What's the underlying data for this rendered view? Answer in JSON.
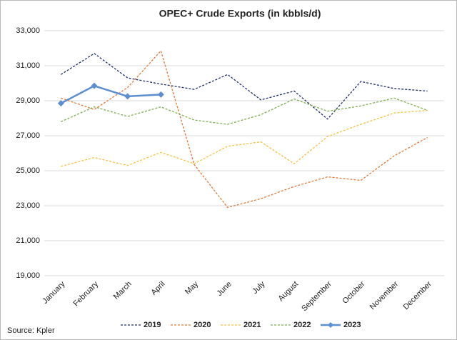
{
  "chart_data": {
    "type": "line",
    "title": "OPEC+ Crude Exports (in kbbls/d)",
    "source": "Source: Kpler",
    "categories": [
      "January",
      "February",
      "March",
      "April",
      "May",
      "June",
      "July",
      "August",
      "September",
      "October",
      "November",
      "December"
    ],
    "series": [
      {
        "name": "2019",
        "color": "#1f2f6e",
        "dashed": true,
        "values": [
          30500,
          31700,
          30300,
          29950,
          29650,
          30500,
          29050,
          29550,
          27950,
          30100,
          29700,
          29550
        ]
      },
      {
        "name": "2020",
        "color": "#e07b39",
        "dashed": true,
        "values": [
          29150,
          28500,
          29750,
          31850,
          25350,
          22900,
          23400,
          24100,
          24650,
          24450,
          25850,
          26900
        ]
      },
      {
        "name": "2021",
        "color": "#f5c242",
        "dashed": true,
        "values": [
          25250,
          25750,
          25300,
          26050,
          25400,
          26400,
          26650,
          25400,
          26950,
          27650,
          28300,
          28450
        ]
      },
      {
        "name": "2022",
        "color": "#7fad4f",
        "dashed": true,
        "values": [
          27800,
          28650,
          28100,
          28650,
          27900,
          27650,
          28200,
          29100,
          28400,
          28700,
          29150,
          28450
        ]
      },
      {
        "name": "2023",
        "color": "#5b8fd1",
        "dashed": false,
        "marker": "diamond",
        "values": [
          28850,
          29850,
          29250,
          29350,
          null,
          null,
          null,
          null,
          null,
          null,
          null,
          null
        ]
      }
    ],
    "ylim": [
      19000,
      33000
    ],
    "yticks": [
      {
        "value": 19000,
        "label": "19,000"
      },
      {
        "value": 21000,
        "label": "21,000"
      },
      {
        "value": 23000,
        "label": "23,000"
      },
      {
        "value": 25000,
        "label": "25,000"
      },
      {
        "value": 27000,
        "label": "27,000"
      },
      {
        "value": 29000,
        "label": "29,000"
      },
      {
        "value": 31000,
        "label": "31,000"
      },
      {
        "value": 33000,
        "label": "33,000"
      }
    ],
    "grid": true,
    "legend": "bottom"
  }
}
